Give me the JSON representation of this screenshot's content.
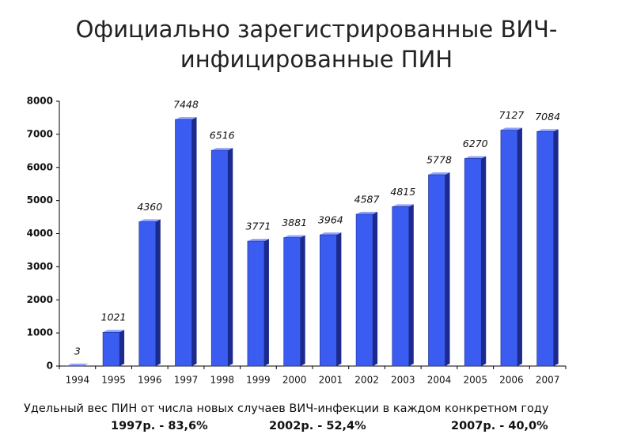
{
  "chart_data": {
    "type": "bar3d",
    "title": "Официально зарегистрированные ВИЧ-инфицированные ПИН",
    "categories": [
      "1994",
      "1995",
      "1996",
      "1997",
      "1998",
      "1999",
      "2000",
      "2001",
      "2002",
      "2003",
      "2004",
      "2005",
      "2006",
      "2007"
    ],
    "values": [
      3,
      1021,
      4360,
      7448,
      6516,
      3771,
      3881,
      3964,
      4587,
      4815,
      5778,
      6270,
      7127,
      7084
    ],
    "color": "#3a5cf0",
    "ylim": [
      0,
      8000
    ],
    "yticks": [
      0,
      1000,
      2000,
      3000,
      4000,
      5000,
      6000,
      7000,
      8000
    ],
    "grid": false,
    "footnote": "Удельный вес ПИН от числа новых случаев ВИЧ-инфекции в каждом конкретном году",
    "notes": [
      "1997р. - 83,6%",
      "2002р. - 52,4%",
      "2007р. - 40,0%"
    ]
  }
}
